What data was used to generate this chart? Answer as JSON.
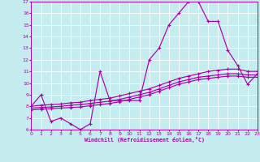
{
  "xlabel": "Windchill (Refroidissement éolien,°C)",
  "xlim": [
    0,
    23
  ],
  "ylim": [
    6,
    17
  ],
  "xticks": [
    0,
    1,
    2,
    3,
    4,
    5,
    6,
    7,
    8,
    9,
    10,
    11,
    12,
    13,
    14,
    15,
    16,
    17,
    18,
    19,
    20,
    21,
    22,
    23
  ],
  "yticks": [
    6,
    7,
    8,
    9,
    10,
    11,
    12,
    13,
    14,
    15,
    16,
    17
  ],
  "bg_color": "#c5ecee",
  "line_color": "#aa00aa",
  "grid_color": "#ffffff",
  "line1_x": [
    0,
    1,
    2,
    3,
    4,
    5,
    6,
    7,
    8,
    9,
    10,
    11,
    12,
    13,
    14,
    15,
    16,
    17,
    18,
    19,
    20,
    21,
    22,
    23
  ],
  "line1_y": [
    8.0,
    9.0,
    6.7,
    7.0,
    6.5,
    6.0,
    6.5,
    11.0,
    8.5,
    8.5,
    8.5,
    8.5,
    12.0,
    13.0,
    15.0,
    16.0,
    17.0,
    17.0,
    15.3,
    15.3,
    12.8,
    11.5,
    9.9,
    10.8
  ],
  "line2_x": [
    0,
    1,
    2,
    3,
    4,
    5,
    6,
    7,
    8,
    9,
    10,
    11,
    12,
    13,
    14,
    15,
    16,
    17,
    18,
    19,
    20,
    21,
    22,
    23
  ],
  "line2_y": [
    8.0,
    8.1,
    8.15,
    8.2,
    8.3,
    8.35,
    8.5,
    8.6,
    8.7,
    8.9,
    9.1,
    9.3,
    9.5,
    9.8,
    10.1,
    10.4,
    10.6,
    10.8,
    11.0,
    11.1,
    11.2,
    11.2,
    11.0,
    11.0
  ],
  "line3_x": [
    0,
    1,
    2,
    3,
    4,
    5,
    6,
    7,
    8,
    9,
    10,
    11,
    12,
    13,
    14,
    15,
    16,
    17,
    18,
    19,
    20,
    21,
    22,
    23
  ],
  "line3_y": [
    7.85,
    7.9,
    7.95,
    8.0,
    8.1,
    8.15,
    8.25,
    8.35,
    8.45,
    8.6,
    8.8,
    9.0,
    9.2,
    9.5,
    9.8,
    10.1,
    10.3,
    10.5,
    10.6,
    10.7,
    10.8,
    10.8,
    10.7,
    10.7
  ],
  "line4_x": [
    0,
    1,
    2,
    3,
    4,
    5,
    6,
    7,
    8,
    9,
    10,
    11,
    12,
    13,
    14,
    15,
    16,
    17,
    18,
    19,
    20,
    21,
    22,
    23
  ],
  "line4_y": [
    7.7,
    7.75,
    7.8,
    7.85,
    7.9,
    7.95,
    8.05,
    8.15,
    8.25,
    8.4,
    8.6,
    8.8,
    9.0,
    9.3,
    9.6,
    9.9,
    10.1,
    10.3,
    10.4,
    10.5,
    10.6,
    10.6,
    10.5,
    10.5
  ]
}
